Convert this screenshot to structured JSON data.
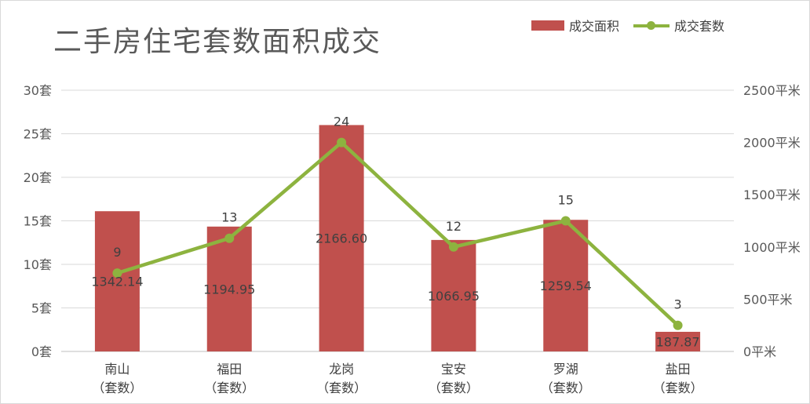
{
  "chart_data": {
    "type": "bar",
    "title": "二手房住宅套数面积成交",
    "categories": [
      "南山\n（套数）",
      "福田\n（套数）",
      "龙岗\n（套数）",
      "宝安\n（套数）",
      "罗湖\n（套数）",
      "盐田\n（套数）"
    ],
    "series": [
      {
        "name": "成交面积",
        "type": "bar",
        "axis": "right",
        "values": [
          1342.14,
          1194.95,
          2166.6,
          1066.95,
          1259.54,
          187.87
        ],
        "labels": [
          "1342.14",
          "1194.95",
          "2166.60",
          "1066.95",
          "1259.54",
          "187.87"
        ],
        "color": "#c0504d"
      },
      {
        "name": "成交套数",
        "type": "line",
        "axis": "left",
        "values": [
          9,
          13,
          24,
          12,
          15,
          3
        ],
        "labels": [
          "9",
          "13",
          "24",
          "12",
          "15",
          "3"
        ],
        "color": "#8db33f"
      }
    ],
    "y_left": {
      "min": 0,
      "max": 30,
      "ticks": [
        "0套",
        "5套",
        "10套",
        "15套",
        "20套",
        "25套",
        "30套"
      ]
    },
    "y_right": {
      "min": 0,
      "max": 2500,
      "ticks": [
        "0平米",
        "500平米",
        "1000平米",
        "1500平米",
        "2000平米",
        "2500平米"
      ]
    },
    "grid": true,
    "legend": "top-right"
  }
}
